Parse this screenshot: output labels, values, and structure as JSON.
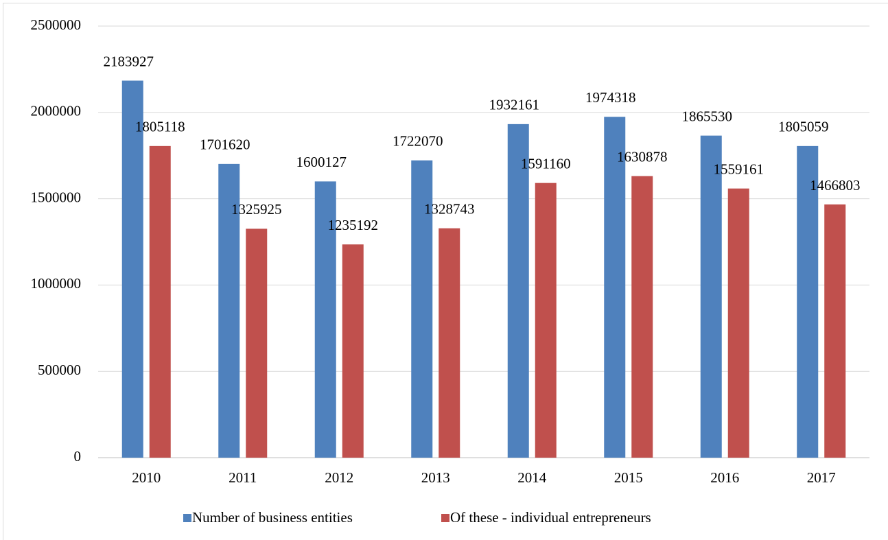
{
  "chart_data": {
    "type": "bar",
    "categories": [
      "2010",
      "2011",
      "2012",
      "2013",
      "2014",
      "2015",
      "2016",
      "2017"
    ],
    "series": [
      {
        "name": "Number of business entities",
        "color": "#4f81bd",
        "values": [
          2183927,
          1701620,
          1600127,
          1722070,
          1932161,
          1974318,
          1865530,
          1805059
        ]
      },
      {
        "name": "Of these - individual entrepreneurs",
        "color": "#c0504d",
        "values": [
          1805118,
          1325925,
          1235192,
          1328743,
          1591160,
          1630878,
          1559161,
          1466803
        ]
      }
    ],
    "ylim": [
      0,
      2500000
    ],
    "yticks": [
      0,
      500000,
      1000000,
      1500000,
      2000000,
      2500000
    ],
    "grid": true,
    "legend": "bottom"
  }
}
